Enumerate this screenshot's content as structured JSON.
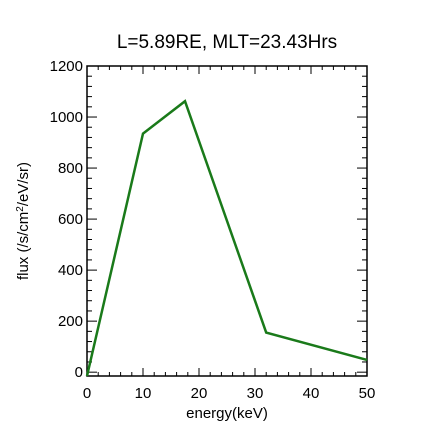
{
  "chart_data": {
    "type": "line",
    "title": "L=5.89RE, MLT=23.43Hrs",
    "xlabel": "energy(keV)",
    "ylabel": {
      "prefix": "flux (/s/cm",
      "superscript": "2",
      "suffix": "/eV/sr)"
    },
    "xlim": [
      0,
      50
    ],
    "ylim": [
      -15,
      1200
    ],
    "x_ticks": [
      0,
      10,
      20,
      30,
      40,
      50
    ],
    "y_ticks": [
      0,
      200,
      400,
      600,
      800,
      1000,
      1200
    ],
    "grid": false,
    "series": [
      {
        "color": "#1a7a1a",
        "x": [
          0,
          10,
          17.5,
          32,
          50
        ],
        "y": [
          -15,
          935,
          1062,
          155,
          48
        ]
      }
    ]
  }
}
